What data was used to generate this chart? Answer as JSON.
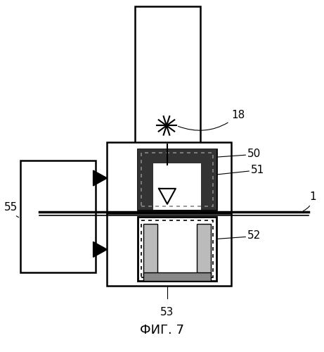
{
  "title": "ФИГ. 7",
  "title_fontsize": 13,
  "background_color": "#ffffff",
  "line_color": "#000000",
  "label_18": "18",
  "label_50": "50",
  "label_51": "51",
  "label_52": "52",
  "label_53": "53",
  "label_55": "55",
  "label_1": "1",
  "fig_width": 4.61,
  "fig_height": 5.0,
  "dpi": 100
}
